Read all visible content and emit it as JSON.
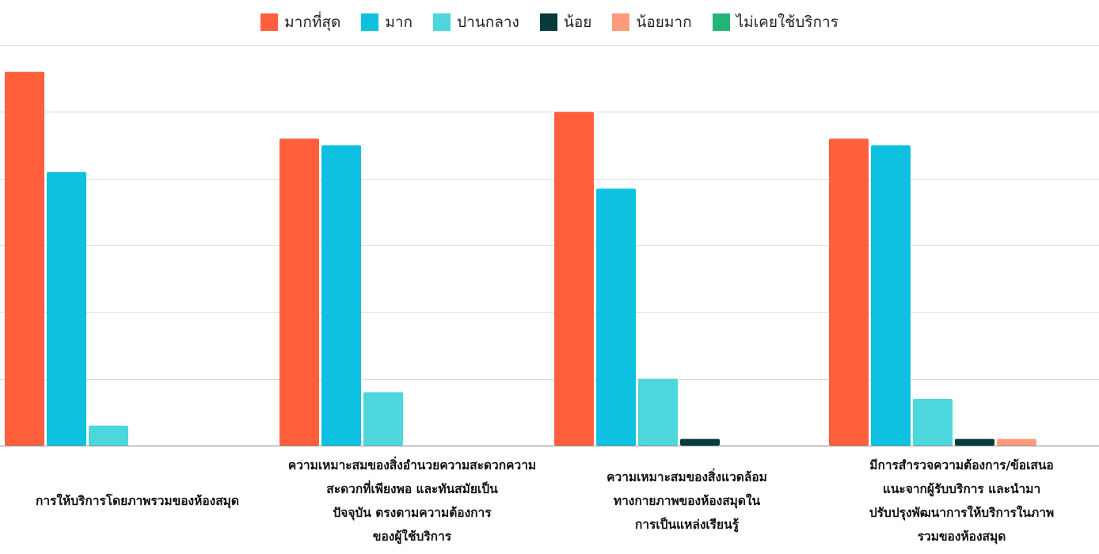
{
  "chart_data": {
    "type": "bar",
    "categories": [
      "การให้บริการโดยภาพรวมของห้องสมุด",
      "ความเหมาะสมของสิ่งอำนวยความสะดวกที่เพียงพอ และทันสมัยเป็นปัจจุบัน ตรงตามความต้องการของผู้ใช้บริการ",
      "ความเหมาะสมของสิ่งแวดล้อมทางกายภาพของห้องสมุดในการเป็นแหล่งเรียนรู้",
      "มีการสำรวจความต้องการ/ข้อเสนอแนะจากผู้รับบริการ และนำมาปรับปรุงพัฒนาการให้บริการในภาพรวมของห้องสมุด"
    ],
    "category_lines": [
      [
        "การให้บริการโดยภาพรวมของห้องสมุด"
      ],
      [
        "ความเหมาะสมของสิ่งอำนวยความสะดวกความ",
        "สะดวกที่เพียงพอ และทันสมัยเป็น",
        "ปัจจุบัน ตรงตามความต้องการ",
        "ของผู้ใช้บริการ"
      ],
      [
        "ความเหมาะสมของสิ่งแวดล้อม",
        "ทางกายภาพของห้องสมุดใน",
        "การเป็นแหล่งเรียนรู้"
      ],
      [
        "มีการสำรวจความต้องการ/ข้อเสนอ",
        "แนะจากผู้รับบริการ และนำมา",
        "ปรับปรุงพัฒนาการให้บริการในภาพ",
        "รวมของห้องสมุด"
      ]
    ],
    "series": [
      {
        "name": "มากที่สุด",
        "color": "#ff5f3c",
        "values": [
          56,
          46,
          50,
          46
        ]
      },
      {
        "name": "มาก",
        "color": "#0ec1e0",
        "values": [
          41,
          45,
          38.5,
          45
        ]
      },
      {
        "name": "ปานกลาง",
        "color": "#4bd7dc",
        "values": [
          3,
          8,
          10,
          7
        ]
      },
      {
        "name": "น้อย",
        "color": "#073b3c",
        "values": [
          0,
          0,
          1,
          1
        ]
      },
      {
        "name": "น้อยมาก",
        "color": "#ff9a7c",
        "values": [
          0,
          0,
          0,
          1
        ]
      },
      {
        "name": "ไม่เคยใช้บริการ",
        "color": "#22b573",
        "values": [
          0,
          0,
          0,
          0
        ]
      }
    ],
    "ylim": [
      0,
      60
    ],
    "grid": true,
    "legend_position": "top-center",
    "xlabel": "",
    "ylabel": ""
  }
}
